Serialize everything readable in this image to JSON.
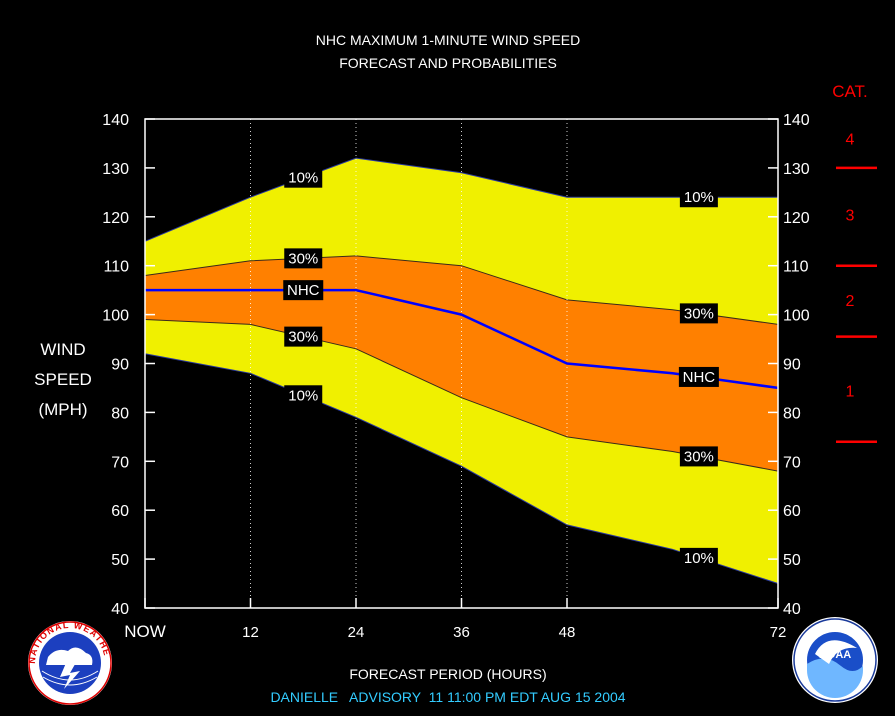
{
  "chart_data": {
    "type": "area",
    "title": "NHC MAXIMUM 1-MINUTE WIND SPEED",
    "subtitle": "FORECAST AND PROBABILITIES",
    "xlabel": "FORECAST PERIOD (HOURS)",
    "ylabel_lines": [
      "WIND",
      "SPEED",
      "(MPH)"
    ],
    "footer": "DANIELLE   ADVISORY  11 11:00 PM EDT AUG 15 2004",
    "x_ticks": [
      0,
      12,
      24,
      36,
      48,
      72
    ],
    "x_tick_labels": [
      "NOW",
      "12",
      "24",
      "36",
      "48",
      "72"
    ],
    "xlim": [
      0,
      72
    ],
    "y_ticks": [
      40,
      50,
      60,
      70,
      80,
      90,
      100,
      110,
      120,
      130,
      140
    ],
    "y_tick_labels": [
      "40",
      "50",
      "60",
      "70",
      "80",
      "90",
      "100",
      "110",
      "120",
      "130",
      "140"
    ],
    "ylim": [
      40,
      140
    ],
    "x": [
      0,
      12,
      24,
      36,
      48,
      60,
      72
    ],
    "series": [
      {
        "label": "10%",
        "values": [
          115,
          124,
          132,
          129,
          124,
          124,
          124
        ]
      },
      {
        "label": "30%",
        "values": [
          108,
          111,
          112,
          110,
          103,
          101,
          98
        ]
      },
      {
        "label": "NHC",
        "values": [
          105,
          105,
          105,
          100,
          90,
          88,
          85
        ]
      },
      {
        "label": "30%",
        "values": [
          99,
          98,
          93,
          83,
          75,
          72,
          68
        ]
      },
      {
        "label": "10%",
        "values": [
          92,
          88,
          79,
          69,
          57,
          52,
          45
        ]
      }
    ],
    "category_title": "CAT.",
    "categories": [
      {
        "label": "4",
        "y": 136
      },
      {
        "label": "3",
        "y": 120.5
      },
      {
        "label": "2",
        "y": 103
      },
      {
        "label": "1",
        "y": 84.5
      }
    ],
    "category_thresholds": [
      130,
      110,
      95.5,
      74
    ],
    "colors": {
      "outer_band": "#f0f000",
      "inner_band": "#ff8000",
      "nhc_line": "#0000ff",
      "category": "#ff0000",
      "footer": "#33ccff",
      "grid": "#ffffff"
    },
    "grid": "vertical dotted"
  },
  "logos": {
    "left": "NATIONAL WEATHER SERVICE",
    "right": "NOAA"
  }
}
